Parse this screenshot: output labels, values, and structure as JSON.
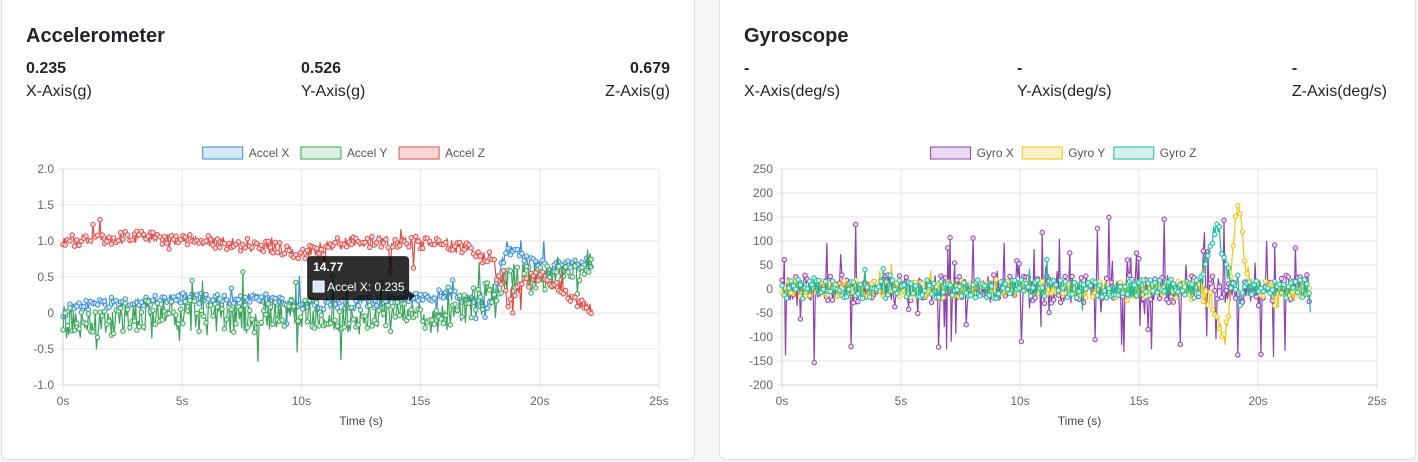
{
  "cards": {
    "accel": {
      "title": "Accelerometer",
      "stats": [
        {
          "value": "0.235",
          "label": "X-Axis(g)"
        },
        {
          "value": "0.526",
          "label": "Y-Axis(g)"
        },
        {
          "value": "0.679",
          "label": "Z-Axis(g)"
        }
      ]
    },
    "gyro": {
      "title": "Gyroscope",
      "stats": [
        {
          "value": "-",
          "label": "X-Axis(deg/s)"
        },
        {
          "value": "-",
          "label": "Y-Axis(deg/s)"
        },
        {
          "value": "-",
          "label": "Z-Axis(deg/s)"
        }
      ]
    }
  },
  "chart_data": [
    {
      "type": "line",
      "id": "accel",
      "xlabel": "Time (s)",
      "ylabel": "",
      "xlim": [
        0,
        25
      ],
      "ylim": [
        -1.0,
        2.0
      ],
      "x_ticks": [
        "0s",
        "5s",
        "10s",
        "15s",
        "20s",
        "25s"
      ],
      "y_ticks": [
        "-1.0",
        "-0.5",
        "0",
        "0.5",
        "1.0",
        "1.5",
        "2.0"
      ],
      "grid": true,
      "legend_position": "top",
      "sample_duration": 22.2,
      "series": [
        {
          "name": "Accel X",
          "color": "#3a8ed4",
          "fill": "#d6e8f8",
          "anchors": [
            [
              0,
              0.02
            ],
            [
              1.5,
              0.15
            ],
            [
              3,
              0.12
            ],
            [
              5,
              0.22
            ],
            [
              6.5,
              0.18
            ],
            [
              8,
              0.22
            ],
            [
              10,
              0.1
            ],
            [
              11.5,
              0.14
            ],
            [
              13,
              0.15
            ],
            [
              14.77,
              0.235
            ],
            [
              16.5,
              0.25
            ],
            [
              18,
              0.12
            ],
            [
              18.6,
              0.92
            ],
            [
              19.5,
              0.72
            ],
            [
              20.5,
              0.62
            ],
            [
              22.2,
              0.72
            ]
          ],
          "noise": 0.08,
          "spikes": 0.03,
          "spike_amp": 0.35
        },
        {
          "name": "Accel Y",
          "color": "#3ba55c",
          "fill": "#d9f1e0",
          "anchors": [
            [
              0,
              -0.2
            ],
            [
              2,
              -0.1
            ],
            [
              4,
              0.0
            ],
            [
              6,
              -0.05
            ],
            [
              8,
              -0.1
            ],
            [
              10,
              0.0
            ],
            [
              12,
              -0.1
            ],
            [
              14,
              -0.05
            ],
            [
              16,
              -0.1
            ],
            [
              17,
              0.1
            ],
            [
              18,
              0.25
            ],
            [
              19,
              0.55
            ],
            [
              20,
              0.45
            ],
            [
              21,
              0.6
            ],
            [
              22.2,
              0.7
            ]
          ],
          "noise": 0.22,
          "spikes": 0.07,
          "spike_amp": 0.5
        },
        {
          "name": "Accel Z",
          "color": "#df4f4b",
          "fill": "#f8d7d6",
          "anchors": [
            [
              0,
              1.0
            ],
            [
              3,
              1.05
            ],
            [
              6,
              1.0
            ],
            [
              9,
              0.9
            ],
            [
              10,
              0.82
            ],
            [
              12,
              1.0
            ],
            [
              15,
              0.98
            ],
            [
              17,
              0.9
            ],
            [
              18,
              0.75
            ],
            [
              18.7,
              0.12
            ],
            [
              19.5,
              0.5
            ],
            [
              20.5,
              0.45
            ],
            [
              21.2,
              0.25
            ],
            [
              22.2,
              0.05
            ]
          ],
          "noise": 0.09,
          "spikes": 0.05,
          "spike_amp": 0.35
        }
      ],
      "tooltip": {
        "title": "14.77",
        "label": "Accel X: 0.235",
        "x": 14.77,
        "y": 0.235
      }
    },
    {
      "type": "line",
      "id": "gyro",
      "xlabel": "Time (s)",
      "ylabel": "",
      "xlim": [
        0,
        25
      ],
      "ylim": [
        -200,
        250
      ],
      "x_ticks": [
        "0s",
        "5s",
        "10s",
        "15s",
        "20s",
        "25s"
      ],
      "y_ticks": [
        "-200",
        "-150",
        "-100",
        "-50",
        "0",
        "50",
        "100",
        "150",
        "200",
        "250"
      ],
      "grid": true,
      "legend_position": "top",
      "sample_duration": 22.2,
      "series": [
        {
          "name": "Gyro X",
          "color": "#8e44ad",
          "fill": "#ead9f2",
          "anchors": [
            [
              0,
              0
            ],
            [
              22.2,
              0
            ]
          ],
          "noise": 30,
          "spikes": 0.18,
          "spike_amp": 140
        },
        {
          "name": "Gyro Y",
          "color": "#f1c40f",
          "fill": "#fcf1c6",
          "anchors": [
            [
              0,
              0
            ],
            [
              17.5,
              0
            ],
            [
              18,
              -20
            ],
            [
              18.4,
              -80
            ],
            [
              18.6,
              -110
            ],
            [
              18.8,
              -40
            ],
            [
              19.0,
              120
            ],
            [
              19.2,
              180
            ],
            [
              19.5,
              40
            ],
            [
              20,
              0
            ],
            [
              22.2,
              0
            ]
          ],
          "noise": 18,
          "spikes": 0.05,
          "spike_amp": 40
        },
        {
          "name": "Gyro Z",
          "color": "#1abc9c",
          "fill": "#d2f2ea",
          "anchors": [
            [
              0,
              0
            ],
            [
              17.5,
              0
            ],
            [
              18,
              100
            ],
            [
              18.3,
              130
            ],
            [
              18.6,
              60
            ],
            [
              19,
              0
            ],
            [
              22.2,
              0
            ]
          ],
          "noise": 20,
          "spikes": 0.05,
          "spike_amp": 50
        }
      ]
    }
  ]
}
